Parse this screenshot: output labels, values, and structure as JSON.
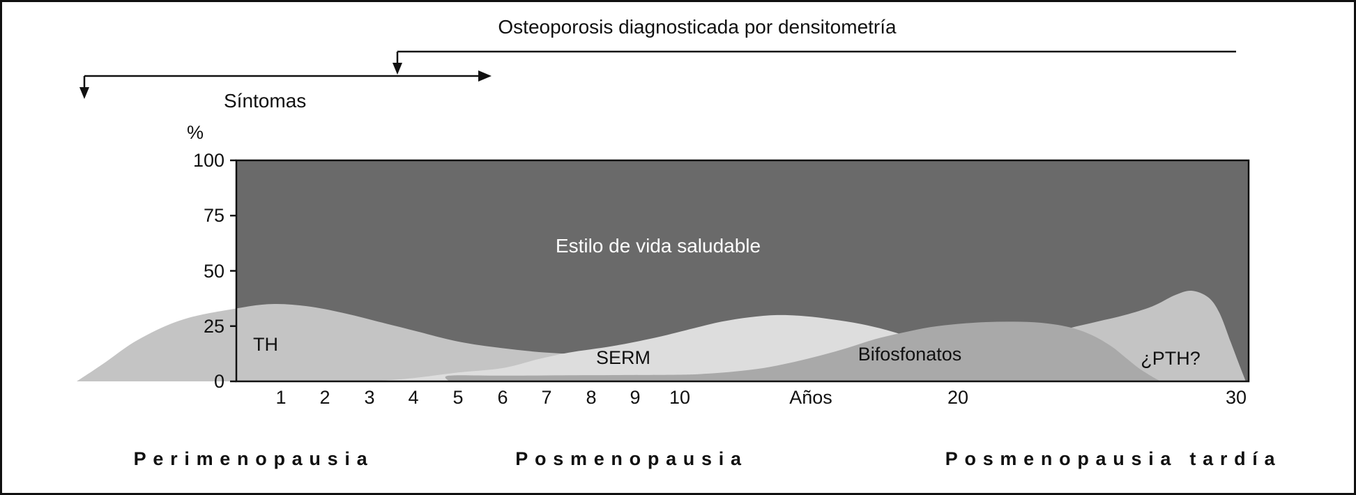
{
  "chart_data": {
    "type": "area",
    "ylabel": "%",
    "ylim": [
      0,
      100
    ],
    "y_ticks": [
      100,
      75,
      50,
      25,
      0
    ],
    "x_ticks": [
      {
        "t": 1,
        "label": "1"
      },
      {
        "t": 2,
        "label": "2"
      },
      {
        "t": 3,
        "label": "3"
      },
      {
        "t": 4,
        "label": "4"
      },
      {
        "t": 5,
        "label": "5"
      },
      {
        "t": 6,
        "label": "6"
      },
      {
        "t": 7,
        "label": "7"
      },
      {
        "t": 8,
        "label": "8"
      },
      {
        "t": 9,
        "label": "9"
      },
      {
        "t": 10,
        "label": "10"
      },
      {
        "t": 14.7,
        "label": "Años"
      },
      {
        "t": 20,
        "label": "20"
      },
      {
        "t": 30,
        "label": "30"
      }
    ],
    "annotations": [
      {
        "text": "Osteoporosis diagnosticada por densitometría"
      },
      {
        "text": "Síntomas"
      }
    ],
    "background": {
      "label": "Estilo de vida saludable",
      "color": "#6a6a6a",
      "label_color": "#ffffff"
    },
    "series": [
      {
        "name": "TH",
        "color": "#c4c4c4",
        "points": [
          [
            -3.6,
            0
          ],
          [
            -3,
            8
          ],
          [
            -2.2,
            19
          ],
          [
            -1.2,
            28
          ],
          [
            0,
            33
          ],
          [
            0.8,
            35
          ],
          [
            1.6,
            34
          ],
          [
            2.4,
            31
          ],
          [
            3.2,
            27
          ],
          [
            4,
            23
          ],
          [
            5,
            18
          ],
          [
            6,
            15
          ],
          [
            7,
            13
          ],
          [
            8,
            12
          ],
          [
            9,
            11
          ],
          [
            10,
            10
          ],
          [
            11,
            8
          ],
          [
            12,
            5
          ],
          [
            13,
            2
          ],
          [
            13.7,
            0
          ]
        ]
      },
      {
        "name": "SERM",
        "color": "#dddddd",
        "points": [
          [
            3,
            0
          ],
          [
            4,
            1.5
          ],
          [
            5,
            4
          ],
          [
            6,
            6
          ],
          [
            6.8,
            10
          ],
          [
            7.5,
            13
          ],
          [
            8.5,
            16
          ],
          [
            9.5,
            20
          ],
          [
            10.5,
            24
          ],
          [
            11.5,
            27
          ],
          [
            12.5,
            29
          ],
          [
            13.5,
            30
          ],
          [
            14.5,
            29.5
          ],
          [
            15.5,
            28
          ],
          [
            16.5,
            26
          ],
          [
            17.5,
            23
          ],
          [
            18.5,
            19
          ],
          [
            19.5,
            14
          ],
          [
            20.5,
            8
          ],
          [
            21.5,
            3
          ],
          [
            22.2,
            0
          ]
        ]
      },
      {
        "name": "¿PTH?",
        "color": "#c4c4c4",
        "points": [
          [
            19,
            0
          ],
          [
            20,
            5
          ],
          [
            21,
            11
          ],
          [
            22,
            16
          ],
          [
            23,
            20
          ],
          [
            24,
            24
          ],
          [
            25,
            27
          ],
          [
            26,
            30
          ],
          [
            27,
            34
          ],
          [
            27.8,
            39
          ],
          [
            28.4,
            41
          ],
          [
            29,
            38
          ],
          [
            29.4,
            31
          ],
          [
            29.8,
            18
          ],
          [
            30.1,
            8
          ],
          [
            30.35,
            0
          ]
        ]
      },
      {
        "name": "Bifosfonatos",
        "color": "#a9a9a9",
        "points": [
          [
            4.8,
            0
          ],
          [
            4.8,
            2.6
          ],
          [
            6,
            2.6
          ],
          [
            8,
            2.8
          ],
          [
            10,
            3
          ],
          [
            11,
            3.5
          ],
          [
            12,
            4.5
          ],
          [
            13,
            6
          ],
          [
            14,
            8.5
          ],
          [
            15,
            11.5
          ],
          [
            16,
            15
          ],
          [
            17,
            19
          ],
          [
            18,
            22
          ],
          [
            19,
            24.5
          ],
          [
            20,
            26
          ],
          [
            21,
            26.8
          ],
          [
            22,
            27
          ],
          [
            23,
            26.5
          ],
          [
            24,
            24.5
          ],
          [
            24.8,
            21
          ],
          [
            25.5,
            16
          ],
          [
            26,
            11
          ],
          [
            26.5,
            6
          ],
          [
            27,
            2
          ],
          [
            27.3,
            0
          ]
        ]
      }
    ],
    "phases": [
      {
        "label": "Perimenopausia"
      },
      {
        "label": "Posmenopausia"
      },
      {
        "label": "Posmenopausia tardía"
      }
    ]
  }
}
